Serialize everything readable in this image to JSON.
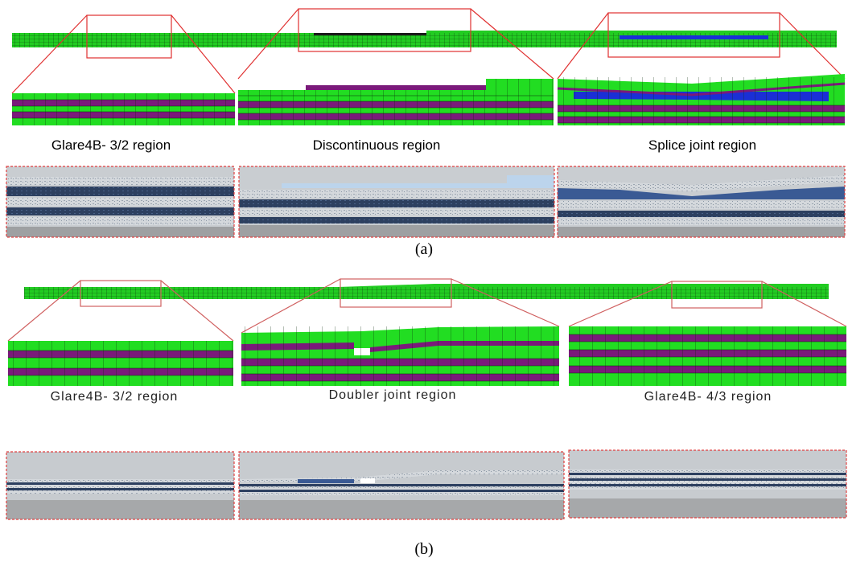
{
  "figure": {
    "part_a": {
      "caption": "(a)",
      "region_labels": [
        "Glare4B- 3/2 region",
        "Discontinuous region",
        "Splice joint region"
      ]
    },
    "part_b": {
      "caption": "(b)",
      "region_labels": [
        "Glare4B- 3/2 region",
        "Doubler joint region",
        "Glare4B- 4/3 region"
      ]
    }
  },
  "colors": {
    "aluminium_layer": "#22dd22",
    "prepreg_layer": "#7a1a7a",
    "adhesive_layer": "#1a2fd6",
    "zoom_box": "#e03030",
    "photo_border": "#e04040"
  }
}
